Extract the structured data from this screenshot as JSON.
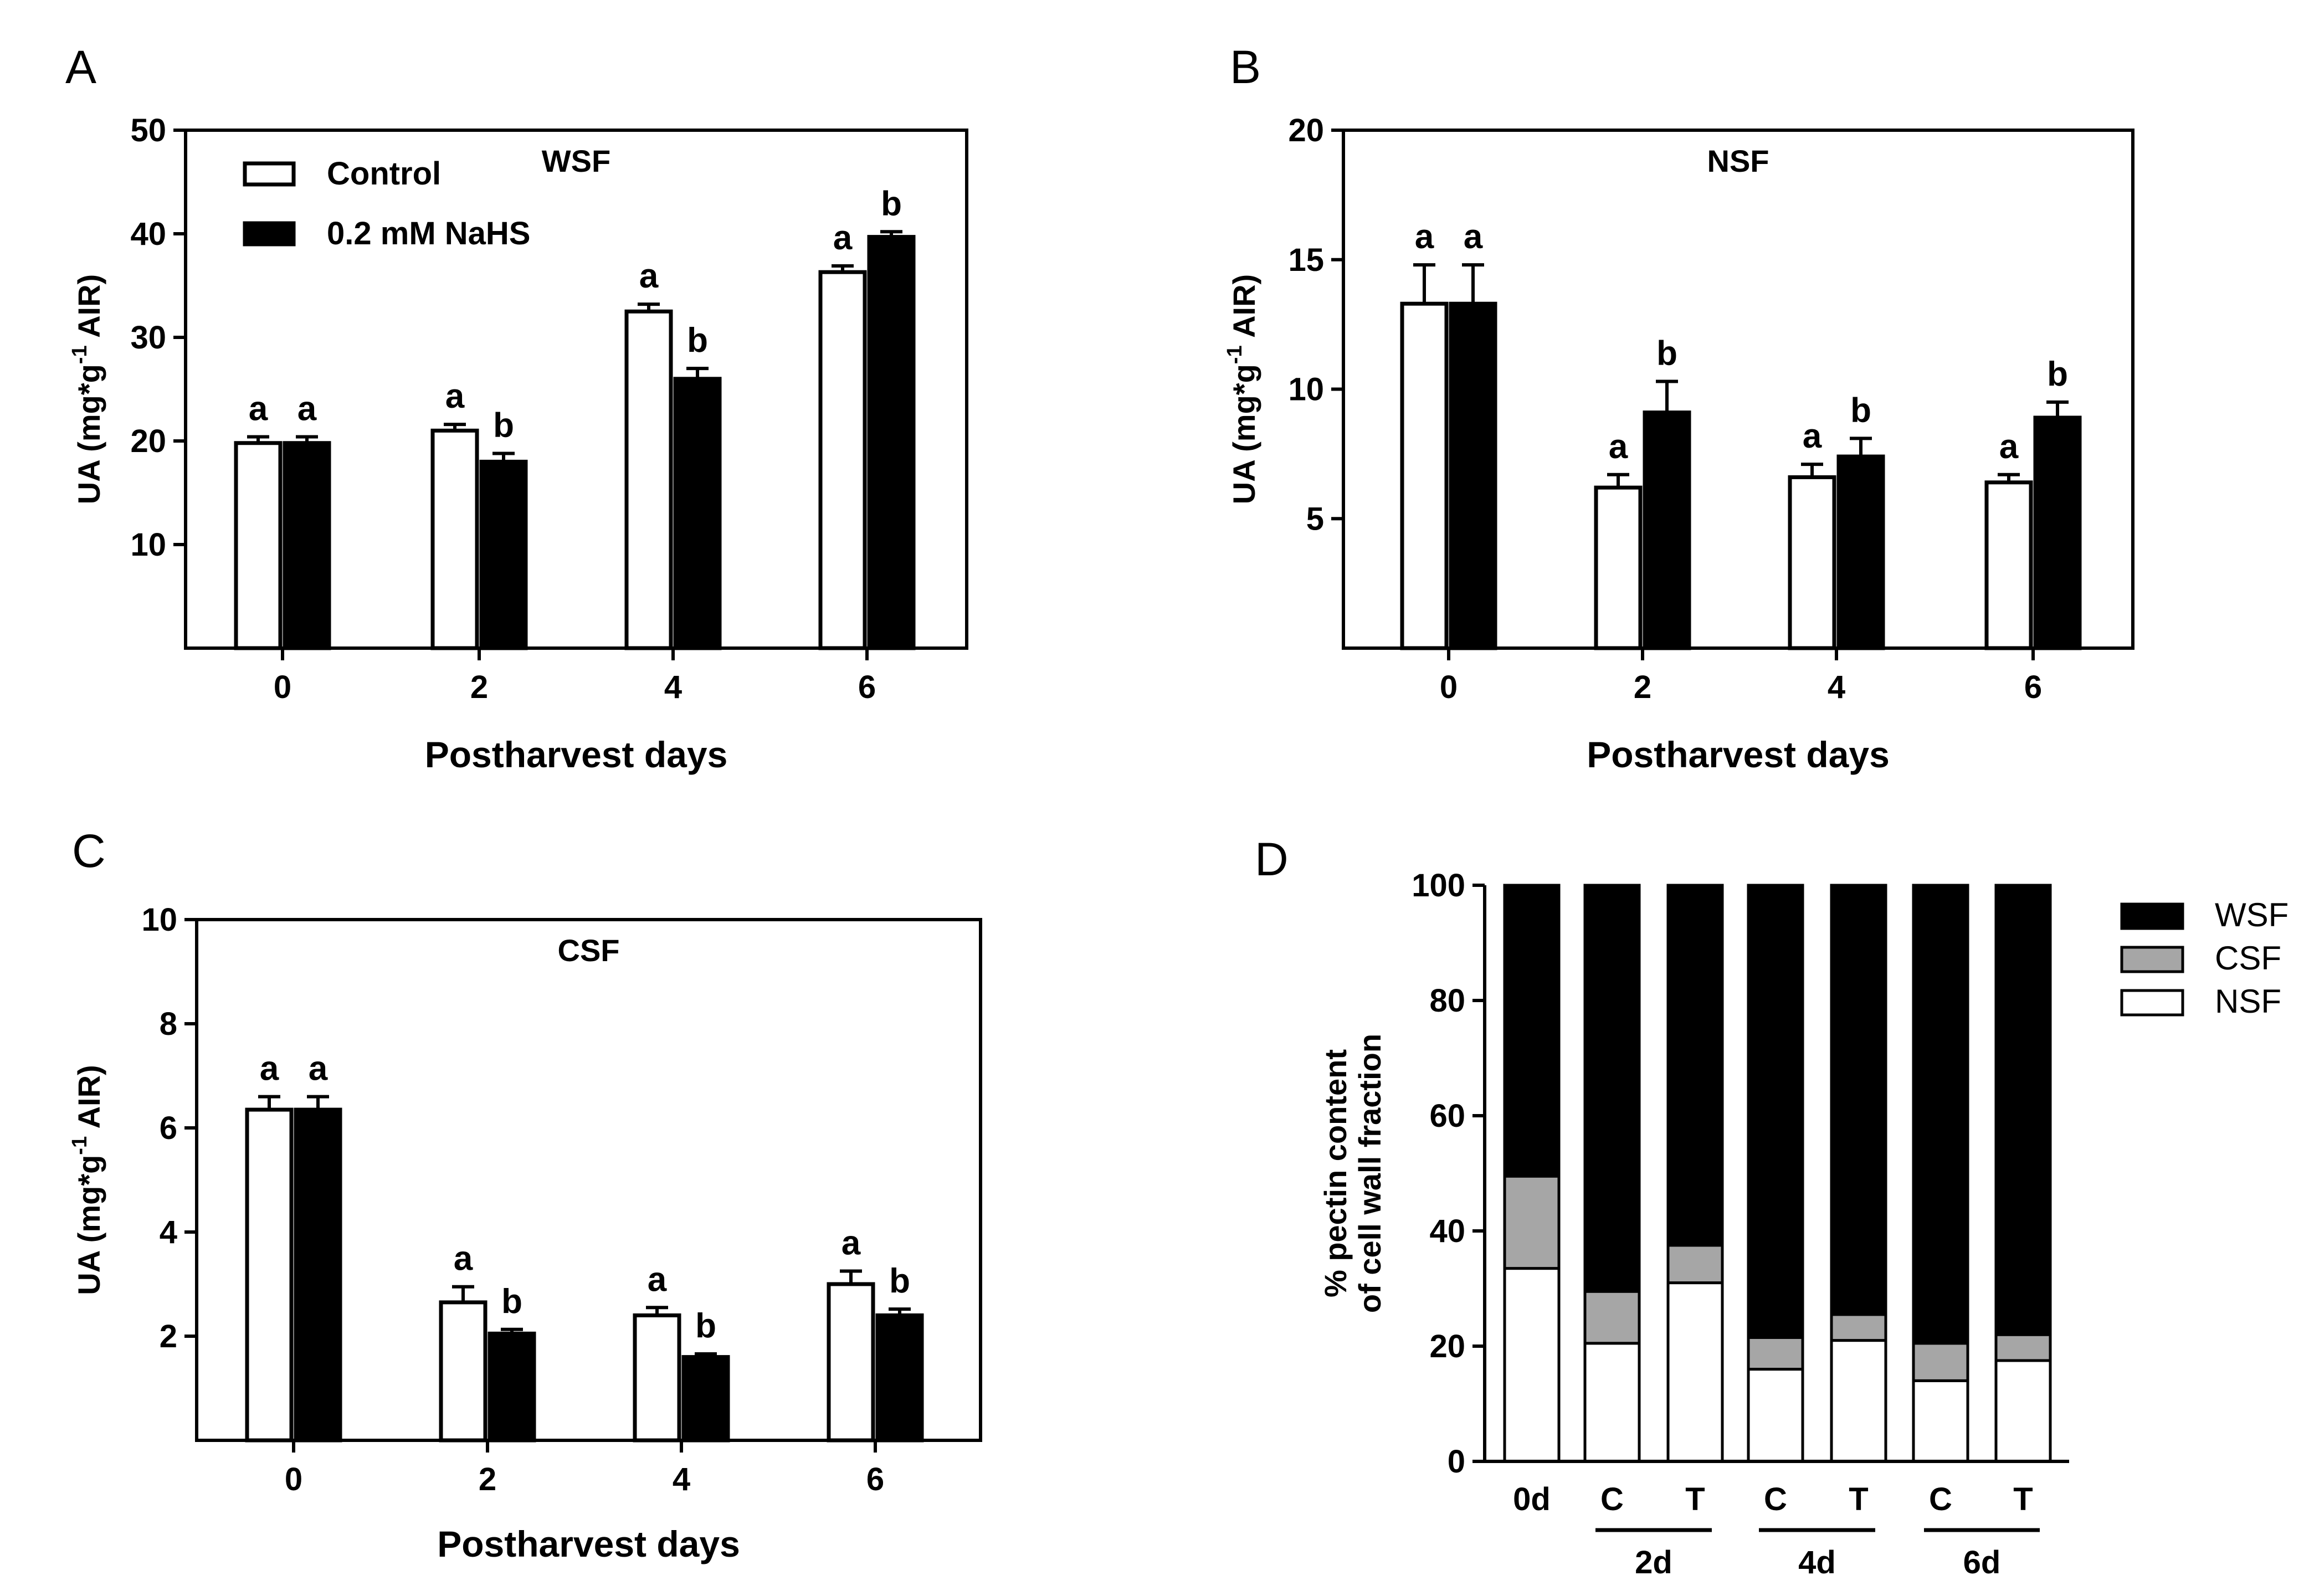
{
  "chart_data": [
    {
      "panel": "A",
      "type": "bar",
      "title": "WSF",
      "xlabel": "Postharvest days",
      "ylabel_parts": [
        "UA (mg*g",
        "-1",
        " AIR)"
      ],
      "categories": [
        "0",
        "2",
        "4",
        "6"
      ],
      "ylim": [
        0,
        50
      ],
      "yticks": [
        10,
        20,
        30,
        40,
        50
      ],
      "series": [
        {
          "name": "Control",
          "color": "#ffffff",
          "values": [
            19.8,
            21.0,
            32.5,
            36.3
          ],
          "errors": [
            0.6,
            0.6,
            0.7,
            0.6
          ],
          "letters": [
            "a",
            "a",
            "a",
            "a"
          ]
        },
        {
          "name": "0.2  mM NaHS",
          "color": "#000000",
          "values": [
            19.8,
            18.0,
            26.0,
            39.7
          ],
          "errors": [
            0.6,
            0.8,
            1.0,
            0.5
          ],
          "letters": [
            "a",
            "b",
            "b",
            "b"
          ]
        }
      ],
      "legend": {
        "position": "top-left",
        "entries": [
          "Control",
          "0.2  mM NaHS"
        ]
      }
    },
    {
      "panel": "B",
      "type": "bar",
      "title": "NSF",
      "xlabel": "Postharvest days",
      "ylabel_parts": [
        "UA (mg*g",
        "-1",
        " AIR)"
      ],
      "categories": [
        "0",
        "2",
        "4",
        "6"
      ],
      "ylim": [
        0,
        20
      ],
      "yticks": [
        5,
        10,
        15,
        20
      ],
      "series": [
        {
          "name": "Control",
          "color": "#ffffff",
          "values": [
            13.3,
            6.2,
            6.6,
            6.4
          ],
          "errors": [
            1.5,
            0.5,
            0.5,
            0.3
          ],
          "letters": [
            "a",
            "a",
            "a",
            "a"
          ]
        },
        {
          "name": "0.2  mM NaHS",
          "color": "#000000",
          "values": [
            13.3,
            9.1,
            7.4,
            8.9
          ],
          "errors": [
            1.5,
            1.2,
            0.7,
            0.6
          ],
          "letters": [
            "a",
            "b",
            "b",
            "b"
          ]
        }
      ]
    },
    {
      "panel": "C",
      "type": "bar",
      "title": "CSF",
      "xlabel": "Postharvest days",
      "ylabel_parts": [
        "UA (mg*g",
        "-1",
        " AIR)"
      ],
      "categories": [
        "0",
        "2",
        "4",
        "6"
      ],
      "ylim": [
        0,
        10
      ],
      "yticks": [
        2,
        4,
        6,
        8,
        10
      ],
      "series": [
        {
          "name": "Control",
          "color": "#ffffff",
          "values": [
            6.35,
            2.65,
            2.4,
            3.0
          ],
          "errors": [
            0.25,
            0.3,
            0.15,
            0.25
          ],
          "letters": [
            "a",
            "a",
            "a",
            "a"
          ]
        },
        {
          "name": "0.2  mM NaHS",
          "color": "#000000",
          "values": [
            6.35,
            2.05,
            1.6,
            2.4
          ],
          "errors": [
            0.25,
            0.08,
            0.06,
            0.12
          ],
          "letters": [
            "a",
            "b",
            "b",
            "b"
          ]
        }
      ]
    },
    {
      "panel": "D",
      "type": "bar",
      "stacked": true,
      "ylabel_lines": [
        "% pectin content",
        "of cell wall fraction"
      ],
      "categories": [
        "0d",
        "C",
        "T",
        "C",
        "T",
        "C",
        "T"
      ],
      "groups": [
        {
          "label": "2d",
          "from": 1,
          "to": 2
        },
        {
          "label": "4d",
          "from": 3,
          "to": 4
        },
        {
          "label": "6d",
          "from": 5,
          "to": 6
        }
      ],
      "ylim": [
        0,
        100
      ],
      "yticks": [
        0,
        20,
        40,
        60,
        80,
        100
      ],
      "series": [
        {
          "name": "NSF",
          "color": "#ffffff",
          "values": [
            33.5,
            20.5,
            31.0,
            16.0,
            21.0,
            14.0,
            17.5
          ]
        },
        {
          "name": "CSF",
          "color": "#a6a6a6",
          "values": [
            16.0,
            9.0,
            6.5,
            5.5,
            4.5,
            6.5,
            4.5
          ]
        },
        {
          "name": "WSF",
          "color": "#000000",
          "values": [
            50.5,
            70.5,
            62.5,
            78.5,
            74.5,
            79.5,
            78.0
          ]
        }
      ],
      "legend": {
        "position": "right",
        "entries": [
          "WSF",
          "CSF",
          "NSF"
        ]
      }
    }
  ]
}
